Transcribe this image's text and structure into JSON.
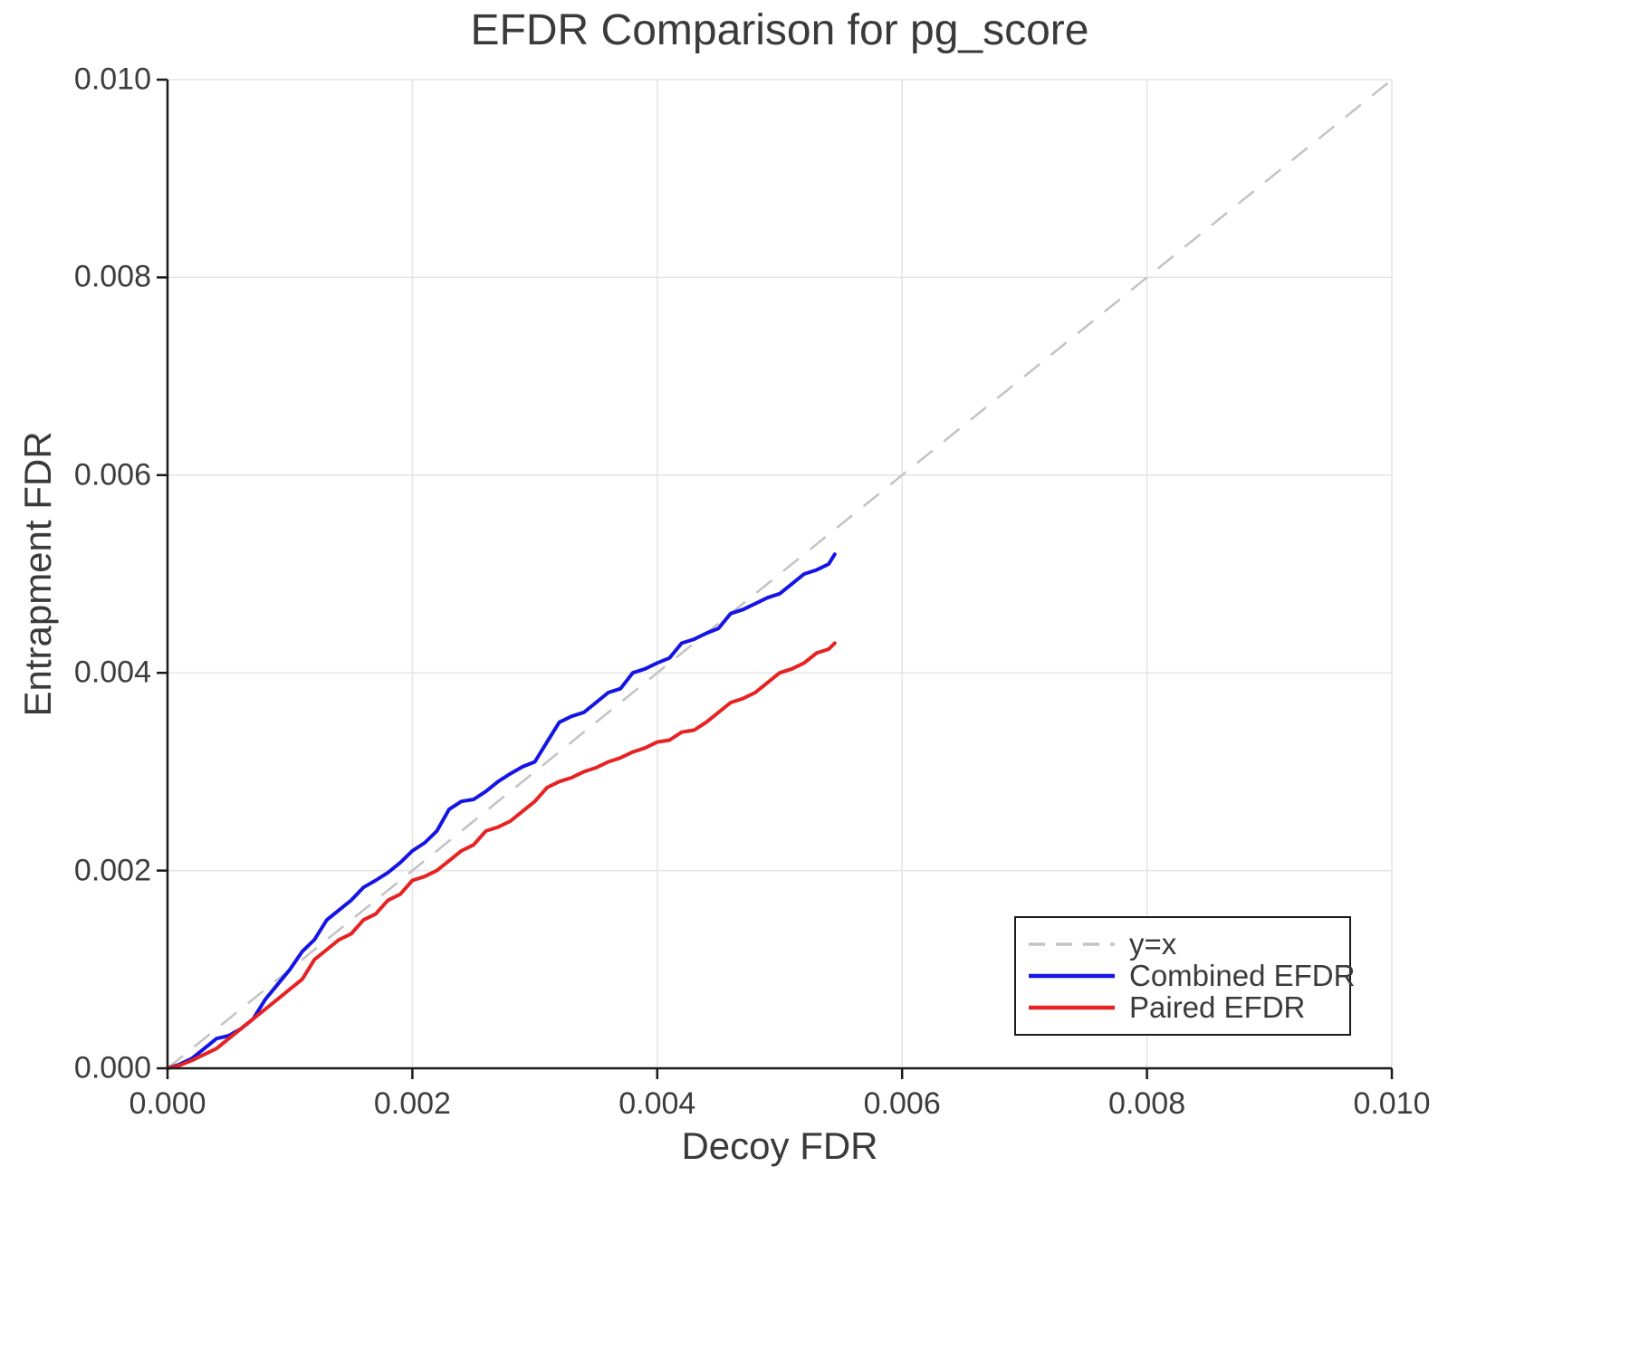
{
  "chart_data": {
    "type": "line",
    "title": "EFDR Comparison for pg_score",
    "xlabel": "Decoy FDR",
    "ylabel": "Entrapment FDR",
    "xlim": [
      0.0,
      0.01
    ],
    "ylim": [
      0.0,
      0.01
    ],
    "xticks": [
      "0.000",
      "0.002",
      "0.004",
      "0.006",
      "0.008",
      "0.010"
    ],
    "yticks": [
      "0.000",
      "0.002",
      "0.004",
      "0.006",
      "0.008",
      "0.010"
    ],
    "grid": true,
    "legend_position": "lower right",
    "colors": {
      "grid": "#e4e4e4",
      "axis": "#1a1a1a",
      "title_text": "#3a3a3a",
      "tick_text": "#3d3d3d"
    },
    "reference_line": {
      "label": "y=x",
      "color": "#c3c3c3",
      "style": "dashed",
      "from": [
        0.0,
        0.0
      ],
      "to": [
        0.01,
        0.01
      ]
    },
    "series": [
      {
        "name": "Combined EFDR",
        "color": "#1414e6",
        "x": [
          0.0,
          0.0001,
          0.0002,
          0.0003,
          0.0004,
          0.0005,
          0.0006,
          0.0007,
          0.0008,
          0.0009,
          0.001,
          0.0011,
          0.0012,
          0.0013,
          0.0014,
          0.0015,
          0.0016,
          0.0017,
          0.0018,
          0.0019,
          0.002,
          0.0021,
          0.0022,
          0.0023,
          0.0024,
          0.0025,
          0.0026,
          0.0027,
          0.0028,
          0.0029,
          0.003,
          0.0031,
          0.0032,
          0.0033,
          0.0034,
          0.0035,
          0.0036,
          0.0037,
          0.0038,
          0.0039,
          0.004,
          0.0041,
          0.0042,
          0.0043,
          0.0044,
          0.0045,
          0.0046,
          0.0047,
          0.0048,
          0.0049,
          0.005,
          0.0051,
          0.0052,
          0.0053,
          0.0054,
          0.00545
        ],
        "y": [
          0.0,
          4e-05,
          0.0001,
          0.0002,
          0.0003,
          0.00033,
          0.0004,
          0.0005,
          0.0007,
          0.00085,
          0.001,
          0.00118,
          0.0013,
          0.0015,
          0.0016,
          0.0017,
          0.00183,
          0.0019,
          0.00198,
          0.00208,
          0.0022,
          0.00228,
          0.0024,
          0.00262,
          0.0027,
          0.00272,
          0.0028,
          0.0029,
          0.00298,
          0.00305,
          0.0031,
          0.0033,
          0.0035,
          0.00356,
          0.0036,
          0.0037,
          0.0038,
          0.00384,
          0.004,
          0.00404,
          0.0041,
          0.00415,
          0.0043,
          0.00434,
          0.0044,
          0.00445,
          0.0046,
          0.00464,
          0.0047,
          0.00476,
          0.0048,
          0.0049,
          0.005,
          0.00504,
          0.0051,
          0.0052
        ]
      },
      {
        "name": "Paired EFDR",
        "color": "#e62222",
        "x": [
          0.0,
          0.0001,
          0.0002,
          0.0003,
          0.0004,
          0.0005,
          0.0006,
          0.0007,
          0.0008,
          0.0009,
          0.001,
          0.0011,
          0.0012,
          0.0013,
          0.0014,
          0.0015,
          0.0016,
          0.0017,
          0.0018,
          0.0019,
          0.002,
          0.0021,
          0.0022,
          0.0023,
          0.0024,
          0.0025,
          0.0026,
          0.0027,
          0.0028,
          0.0029,
          0.003,
          0.0031,
          0.0032,
          0.0033,
          0.0034,
          0.0035,
          0.0036,
          0.0037,
          0.0038,
          0.0039,
          0.004,
          0.0041,
          0.0042,
          0.0043,
          0.0044,
          0.0045,
          0.0046,
          0.0047,
          0.0048,
          0.0049,
          0.005,
          0.0051,
          0.0052,
          0.0053,
          0.0054,
          0.00545
        ],
        "y": [
          0.0,
          3e-05,
          8e-05,
          0.00014,
          0.0002,
          0.0003,
          0.0004,
          0.0005,
          0.0006,
          0.0007,
          0.0008,
          0.0009,
          0.0011,
          0.0012,
          0.0013,
          0.00136,
          0.0015,
          0.00156,
          0.0017,
          0.00176,
          0.0019,
          0.00194,
          0.002,
          0.0021,
          0.0022,
          0.00226,
          0.0024,
          0.00244,
          0.0025,
          0.0026,
          0.0027,
          0.00284,
          0.0029,
          0.00294,
          0.003,
          0.00304,
          0.0031,
          0.00314,
          0.0032,
          0.00324,
          0.0033,
          0.00332,
          0.0034,
          0.00342,
          0.0035,
          0.0036,
          0.0037,
          0.00374,
          0.0038,
          0.0039,
          0.004,
          0.00404,
          0.0041,
          0.0042,
          0.00424,
          0.0043
        ]
      }
    ]
  }
}
